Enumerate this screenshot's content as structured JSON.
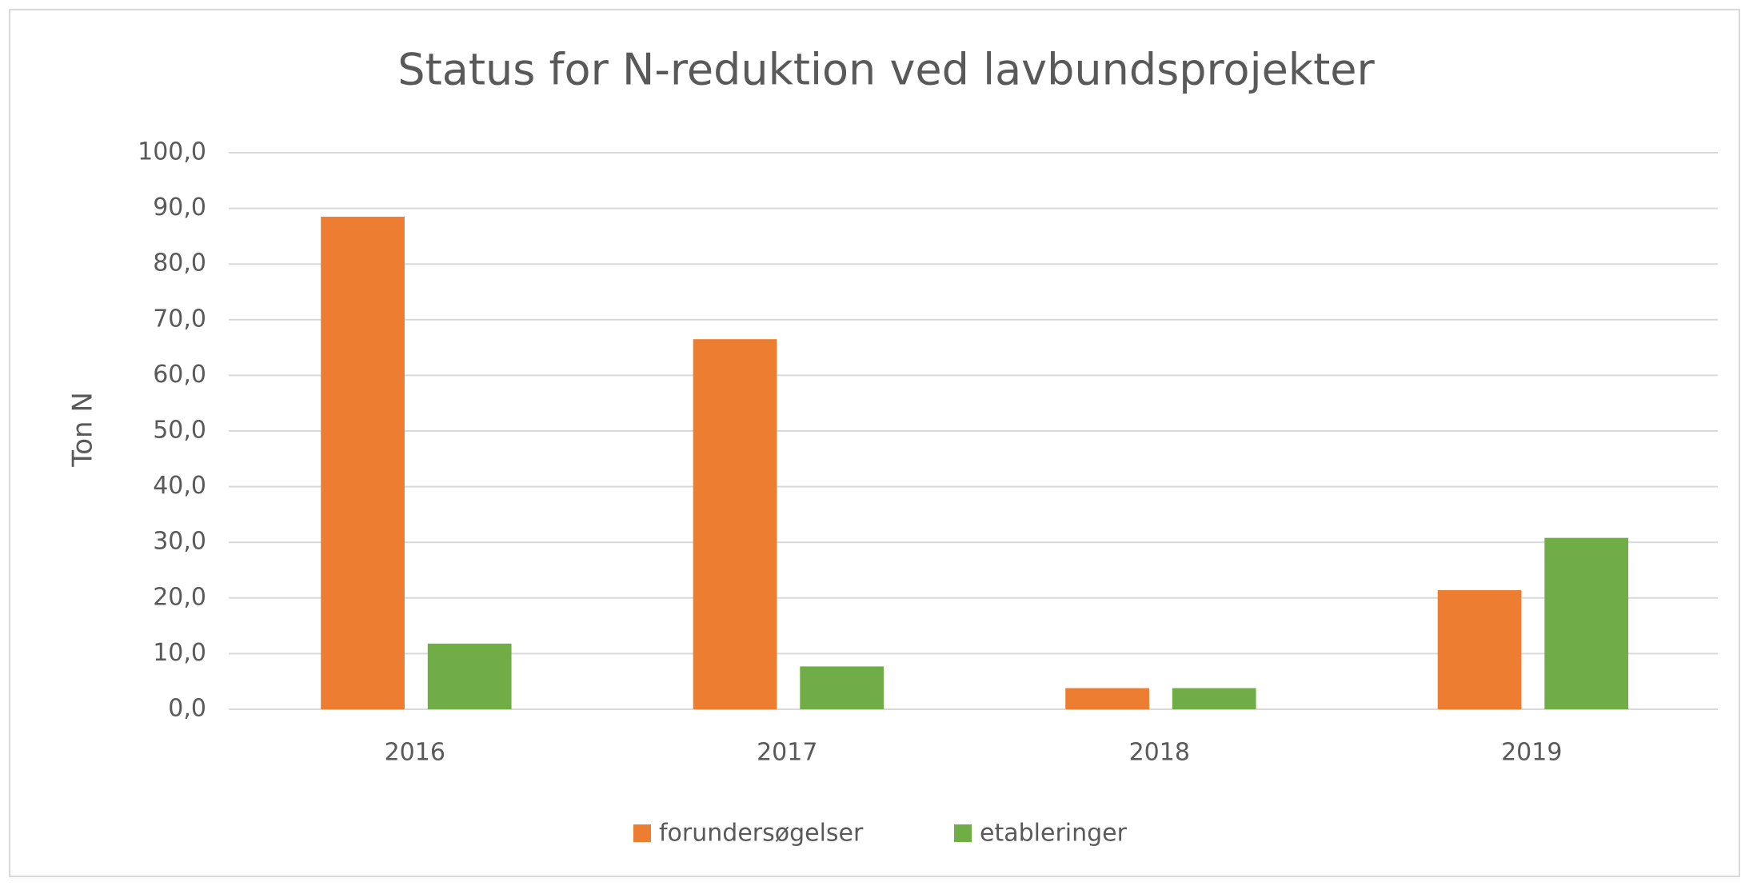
{
  "chart_data": {
    "type": "bar",
    "title": "Status for N-reduktion ved lavbundsprojekter",
    "y_label": "Ton N",
    "categories": [
      "2016",
      "2017",
      "2018",
      "2019"
    ],
    "series": [
      {
        "name": "forundersøgelser",
        "color": "#ed7d31",
        "values": [
          88.5,
          66.5,
          3.8,
          21.4
        ]
      },
      {
        "name": "etableringer",
        "color": "#70ad47",
        "values": [
          11.8,
          7.7,
          3.8,
          30.8
        ]
      }
    ],
    "ylim": [
      0,
      100
    ],
    "yticks": [
      {
        "value": 0,
        "label": "0,0"
      },
      {
        "value": 10,
        "label": "10,0"
      },
      {
        "value": 20,
        "label": "20,0"
      },
      {
        "value": 30,
        "label": "30,0"
      },
      {
        "value": 40,
        "label": "40,0"
      },
      {
        "value": 50,
        "label": "50,0"
      },
      {
        "value": 60,
        "label": "60,0"
      },
      {
        "value": 70,
        "label": "70,0"
      },
      {
        "value": 80,
        "label": "80,0"
      },
      {
        "value": 90,
        "label": "90,0"
      },
      {
        "value": 100,
        "label": "100,0"
      }
    ],
    "grid": true,
    "legend": "bottom"
  }
}
